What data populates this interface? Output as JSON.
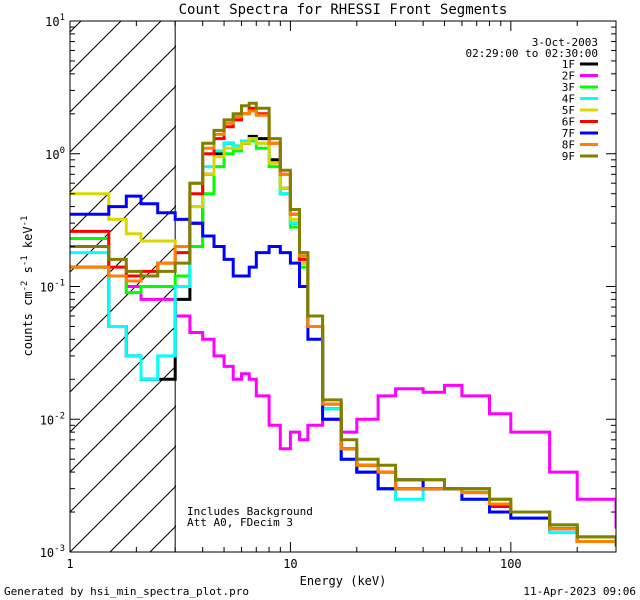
{
  "chart_data": {
    "type": "line",
    "title": "Count Spectra for RHESSI Front Segments",
    "xlabel": "Energy (keV)",
    "ylabel_parts": [
      "counts cm",
      "-2",
      " s",
      "-1",
      " keV",
      "-1"
    ],
    "xscale": "log",
    "yscale": "log",
    "xlim": [
      1,
      300
    ],
    "ylim": [
      0.001,
      10
    ],
    "x_ticks": [
      {
        "value": 1,
        "label": "1"
      },
      {
        "value": 10,
        "label": "10"
      },
      {
        "value": 100,
        "label": "100"
      }
    ],
    "y_ticks": [
      {
        "value": 0.001,
        "base": "10",
        "exp": "-3"
      },
      {
        "value": 0.01,
        "base": "10",
        "exp": "-2"
      },
      {
        "value": 0.1,
        "base": "10",
        "exp": "-1"
      },
      {
        "value": 1,
        "base": "10",
        "exp": "0"
      },
      {
        "value": 10,
        "base": "10",
        "exp": "1"
      }
    ],
    "excluded_region": {
      "from": 1,
      "to": 3
    },
    "date": "3-Oct-2003",
    "time_range": "02:29:00 to 02:30:00",
    "notes": [
      "Includes Background",
      "Att A0, FDecim 3"
    ],
    "legend_position": "top-right",
    "series": [
      {
        "name": "1F",
        "color": "#000000",
        "x": [
          1.0,
          1.5,
          1.8,
          2.1,
          2.5,
          3.0,
          3.5,
          4.0,
          4.5,
          5.0,
          5.5,
          6.0,
          6.5,
          7.0,
          8.0,
          9.0,
          10.0,
          11.0,
          12.0,
          14.0,
          17.0,
          20.0,
          25.0,
          30.0,
          40.0,
          50.0,
          60.0,
          80.0,
          100.0,
          150.0,
          200.0,
          300.0
        ],
        "y": [
          0.14,
          0.05,
          0.03,
          0.02,
          0.02,
          0.08,
          0.3,
          0.7,
          1.0,
          1.2,
          1.1,
          1.2,
          1.35,
          1.3,
          0.9,
          0.55,
          0.3,
          0.15,
          0.05,
          0.012,
          0.006,
          0.004,
          0.003,
          0.003,
          0.003,
          0.003,
          0.003,
          0.002,
          0.002,
          0.0015,
          0.0012,
          0.0011
        ]
      },
      {
        "name": "2F",
        "color": "#ff00ff",
        "x": [
          1.0,
          1.5,
          1.8,
          2.1,
          2.5,
          3.0,
          3.5,
          4.0,
          4.5,
          5.0,
          5.5,
          6.0,
          6.5,
          7.0,
          8.0,
          9.0,
          10.0,
          11.0,
          12.0,
          14.0,
          17.0,
          20.0,
          25.0,
          30.0,
          40.0,
          50.0,
          60.0,
          80.0,
          100.0,
          150.0,
          200.0,
          300.0
        ],
        "y": [
          0.2,
          0.12,
          0.1,
          0.08,
          0.08,
          0.06,
          0.045,
          0.04,
          0.03,
          0.025,
          0.02,
          0.022,
          0.02,
          0.015,
          0.009,
          0.006,
          0.008,
          0.007,
          0.009,
          0.01,
          0.008,
          0.01,
          0.015,
          0.017,
          0.016,
          0.018,
          0.015,
          0.011,
          0.008,
          0.004,
          0.0025,
          0.0015
        ]
      },
      {
        "name": "3F",
        "color": "#00ff00",
        "x": [
          1.0,
          1.5,
          1.8,
          2.1,
          2.5,
          3.0,
          3.5,
          4.0,
          4.5,
          5.0,
          5.5,
          6.0,
          6.5,
          7.0,
          8.0,
          9.0,
          10.0,
          11.0,
          12.0,
          14.0,
          17.0,
          20.0,
          25.0,
          30.0,
          40.0,
          50.0,
          60.0,
          80.0,
          100.0,
          150.0,
          200.0,
          300.0
        ],
        "y": [
          0.23,
          0.12,
          0.09,
          0.1,
          0.1,
          0.12,
          0.2,
          0.5,
          0.8,
          1.0,
          1.05,
          1.2,
          1.25,
          1.1,
          0.8,
          0.5,
          0.28,
          0.14,
          0.05,
          0.012,
          0.006,
          0.0045,
          0.004,
          0.003,
          0.0035,
          0.003,
          0.003,
          0.0025,
          0.002,
          0.0016,
          0.0013,
          0.0011
        ]
      },
      {
        "name": "4F",
        "color": "#00ffff",
        "x": [
          1.0,
          1.5,
          1.8,
          2.1,
          2.5,
          3.0,
          3.5,
          4.0,
          4.5,
          5.0,
          5.5,
          6.0,
          6.5,
          7.0,
          8.0,
          9.0,
          10.0,
          11.0,
          12.0,
          14.0,
          17.0,
          20.0,
          25.0,
          30.0,
          40.0,
          50.0,
          60.0,
          80.0,
          100.0,
          150.0,
          200.0,
          300.0
        ],
        "y": [
          0.18,
          0.05,
          0.03,
          0.02,
          0.03,
          0.1,
          0.4,
          0.8,
          1.05,
          1.2,
          1.15,
          1.25,
          1.3,
          1.2,
          0.85,
          0.5,
          0.3,
          0.15,
          0.05,
          0.012,
          0.005,
          0.004,
          0.003,
          0.0025,
          0.003,
          0.003,
          0.0025,
          0.002,
          0.0018,
          0.0014,
          0.0012,
          0.0011
        ]
      },
      {
        "name": "5F",
        "color": "#d8d800",
        "x": [
          1.0,
          1.5,
          1.8,
          2.1,
          2.5,
          3.0,
          3.5,
          4.0,
          4.5,
          5.0,
          5.5,
          6.0,
          6.5,
          7.0,
          8.0,
          9.0,
          10.0,
          11.0,
          12.0,
          14.0,
          17.0,
          20.0,
          25.0,
          30.0,
          40.0,
          50.0,
          60.0,
          80.0,
          100.0,
          150.0,
          200.0,
          300.0
        ],
        "y": [
          0.5,
          0.32,
          0.25,
          0.22,
          0.22,
          0.2,
          0.4,
          0.7,
          0.95,
          1.1,
          1.1,
          1.2,
          1.3,
          1.2,
          0.85,
          0.55,
          0.32,
          0.15,
          0.05,
          0.013,
          0.006,
          0.0045,
          0.004,
          0.0035,
          0.003,
          0.003,
          0.003,
          0.0025,
          0.002,
          0.0015,
          0.0013,
          0.0011
        ]
      },
      {
        "name": "6F",
        "color": "#ff0000",
        "x": [
          1.0,
          1.5,
          1.8,
          2.1,
          2.5,
          3.0,
          3.5,
          4.0,
          4.5,
          5.0,
          5.5,
          6.0,
          6.5,
          7.0,
          8.0,
          9.0,
          10.0,
          11.0,
          12.0,
          14.0,
          17.0,
          20.0,
          25.0,
          30.0,
          40.0,
          50.0,
          60.0,
          80.0,
          100.0,
          150.0,
          200.0,
          300.0
        ],
        "y": [
          0.26,
          0.14,
          0.12,
          0.13,
          0.15,
          0.18,
          0.5,
          1.0,
          1.3,
          1.6,
          1.8,
          2.0,
          2.2,
          2.0,
          1.2,
          0.7,
          0.35,
          0.16,
          0.05,
          0.013,
          0.006,
          0.0045,
          0.004,
          0.003,
          0.003,
          0.003,
          0.0028,
          0.0022,
          0.002,
          0.0015,
          0.0012,
          0.0011
        ]
      },
      {
        "name": "7F",
        "color": "#0000ff",
        "x": [
          1.0,
          1.5,
          1.8,
          2.1,
          2.5,
          3.0,
          3.5,
          4.0,
          4.5,
          5.0,
          5.5,
          6.0,
          6.5,
          7.0,
          8.0,
          9.0,
          10.0,
          11.0,
          12.0,
          14.0,
          17.0,
          20.0,
          25.0,
          30.0,
          40.0,
          50.0,
          60.0,
          80.0,
          100.0,
          150.0,
          200.0,
          300.0
        ],
        "y": [
          0.35,
          0.4,
          0.48,
          0.42,
          0.36,
          0.32,
          0.3,
          0.24,
          0.2,
          0.16,
          0.12,
          0.12,
          0.14,
          0.18,
          0.2,
          0.18,
          0.15,
          0.1,
          0.04,
          0.01,
          0.005,
          0.004,
          0.003,
          0.0035,
          0.003,
          0.003,
          0.0025,
          0.002,
          0.0018,
          0.0015,
          0.0012,
          0.0011
        ]
      },
      {
        "name": "8F",
        "color": "#ff7f00",
        "x": [
          1.0,
          1.5,
          1.8,
          2.1,
          2.5,
          3.0,
          3.5,
          4.0,
          4.5,
          5.0,
          5.5,
          6.0,
          6.5,
          7.0,
          8.0,
          9.0,
          10.0,
          11.0,
          12.0,
          14.0,
          17.0,
          20.0,
          25.0,
          30.0,
          40.0,
          50.0,
          60.0,
          80.0,
          100.0,
          150.0,
          200.0,
          300.0
        ],
        "y": [
          0.14,
          0.12,
          0.11,
          0.12,
          0.15,
          0.2,
          0.6,
          1.1,
          1.4,
          1.7,
          1.9,
          2.0,
          2.1,
          1.95,
          1.2,
          0.7,
          0.35,
          0.17,
          0.05,
          0.013,
          0.006,
          0.0045,
          0.004,
          0.003,
          0.003,
          0.003,
          0.0028,
          0.0023,
          0.002,
          0.0015,
          0.0012,
          0.0011
        ]
      },
      {
        "name": "9F",
        "color": "#808000",
        "x": [
          1.0,
          1.5,
          1.8,
          2.1,
          2.5,
          3.0,
          3.5,
          4.0,
          4.5,
          5.0,
          5.5,
          6.0,
          6.5,
          7.0,
          8.0,
          9.0,
          10.0,
          11.0,
          12.0,
          14.0,
          17.0,
          20.0,
          25.0,
          30.0,
          40.0,
          50.0,
          60.0,
          80.0,
          100.0,
          150.0,
          200.0,
          300.0
        ],
        "y": [
          0.2,
          0.16,
          0.13,
          0.12,
          0.13,
          0.15,
          0.6,
          1.2,
          1.5,
          1.8,
          2.0,
          2.3,
          2.4,
          2.2,
          1.3,
          0.75,
          0.38,
          0.18,
          0.06,
          0.014,
          0.007,
          0.005,
          0.0045,
          0.0035,
          0.0035,
          0.003,
          0.003,
          0.0025,
          0.002,
          0.0016,
          0.0013,
          0.0011
        ]
      }
    ]
  },
  "footer": {
    "left": "Generated by hsi_min_spectra_plot.pro",
    "right": "11-Apr-2023 09:06"
  }
}
